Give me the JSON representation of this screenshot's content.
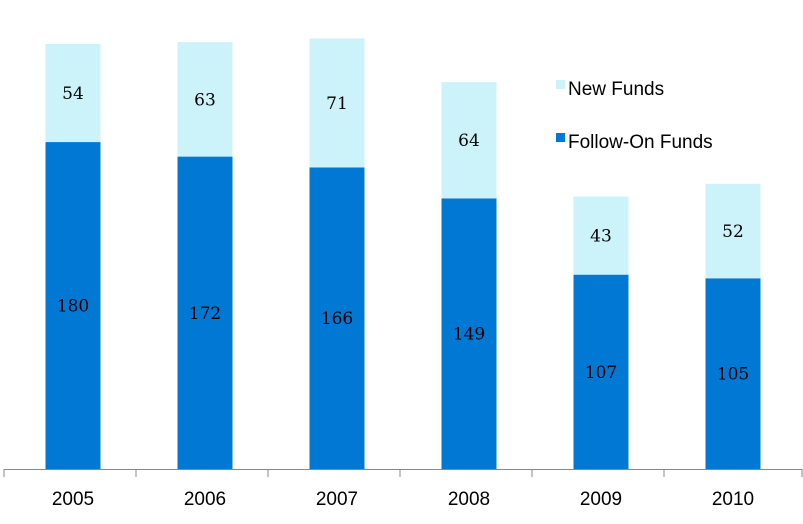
{
  "chart_data": {
    "type": "bar",
    "stacked": true,
    "categories": [
      "2005",
      "2006",
      "2007",
      "2008",
      "2009",
      "2010"
    ],
    "series": [
      {
        "name": "Follow-On Funds",
        "color": "#0078d4",
        "values": [
          180,
          172,
          166,
          149,
          107,
          105
        ]
      },
      {
        "name": "New Funds",
        "color": "#ccf2fa",
        "values": [
          54,
          63,
          71,
          64,
          43,
          52
        ]
      }
    ],
    "title": "",
    "xlabel": "",
    "ylabel": "",
    "ylim": [
      0,
      245
    ],
    "grid": false,
    "legend": {
      "position": "right",
      "order": [
        "New Funds",
        "Follow-On Funds"
      ]
    }
  }
}
